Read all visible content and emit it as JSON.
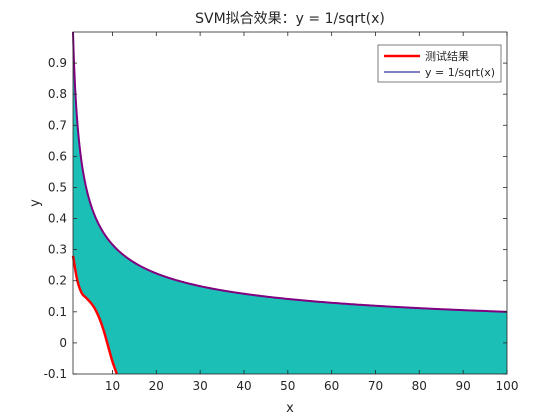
{
  "chart_data": {
    "type": "line",
    "title": "SVM拟合效果：y = 1/sqrt(x)",
    "xlabel": "x",
    "ylabel": "y",
    "xlim": [
      1,
      100
    ],
    "ylim": [
      -0.1,
      1.0
    ],
    "xticks": [
      10,
      20,
      30,
      40,
      50,
      60,
      70,
      80,
      90,
      100
    ],
    "xtick_labels": [
      "10",
      "20",
      "30",
      "40",
      "50",
      "60",
      "70",
      "80",
      "90",
      "100"
    ],
    "yticks": [
      -0.1,
      0,
      0.1,
      0.2,
      0.3,
      0.4,
      0.5,
      0.6,
      0.7,
      0.8,
      0.9
    ],
    "ytick_labels": [
      "-0.1",
      "0",
      "0.1",
      "0.2",
      "0.3",
      "0.4",
      "0.5",
      "0.6",
      "0.7",
      "0.8",
      "0.9"
    ],
    "grid": false,
    "legend_position": "top-right",
    "fill_color": "#1bbfb6",
    "series": [
      {
        "name": "测试结果",
        "color": "#ff0000",
        "points": [
          [
            1,
            0.28
          ],
          [
            2,
            0.2
          ],
          [
            3,
            0.16
          ],
          [
            4,
            0.145
          ],
          [
            5,
            0.13
          ],
          [
            6,
            0.11
          ],
          [
            7,
            0.08
          ],
          [
            8,
            0.04
          ],
          [
            9,
            -0.01
          ],
          [
            10,
            -0.06
          ],
          [
            11,
            -0.1
          ]
        ]
      },
      {
        "name": "y = 1/sqrt(x)",
        "color": "#000080",
        "function": "1/sqrt(x)"
      }
    ],
    "overlay_curve_color": "#800080"
  }
}
